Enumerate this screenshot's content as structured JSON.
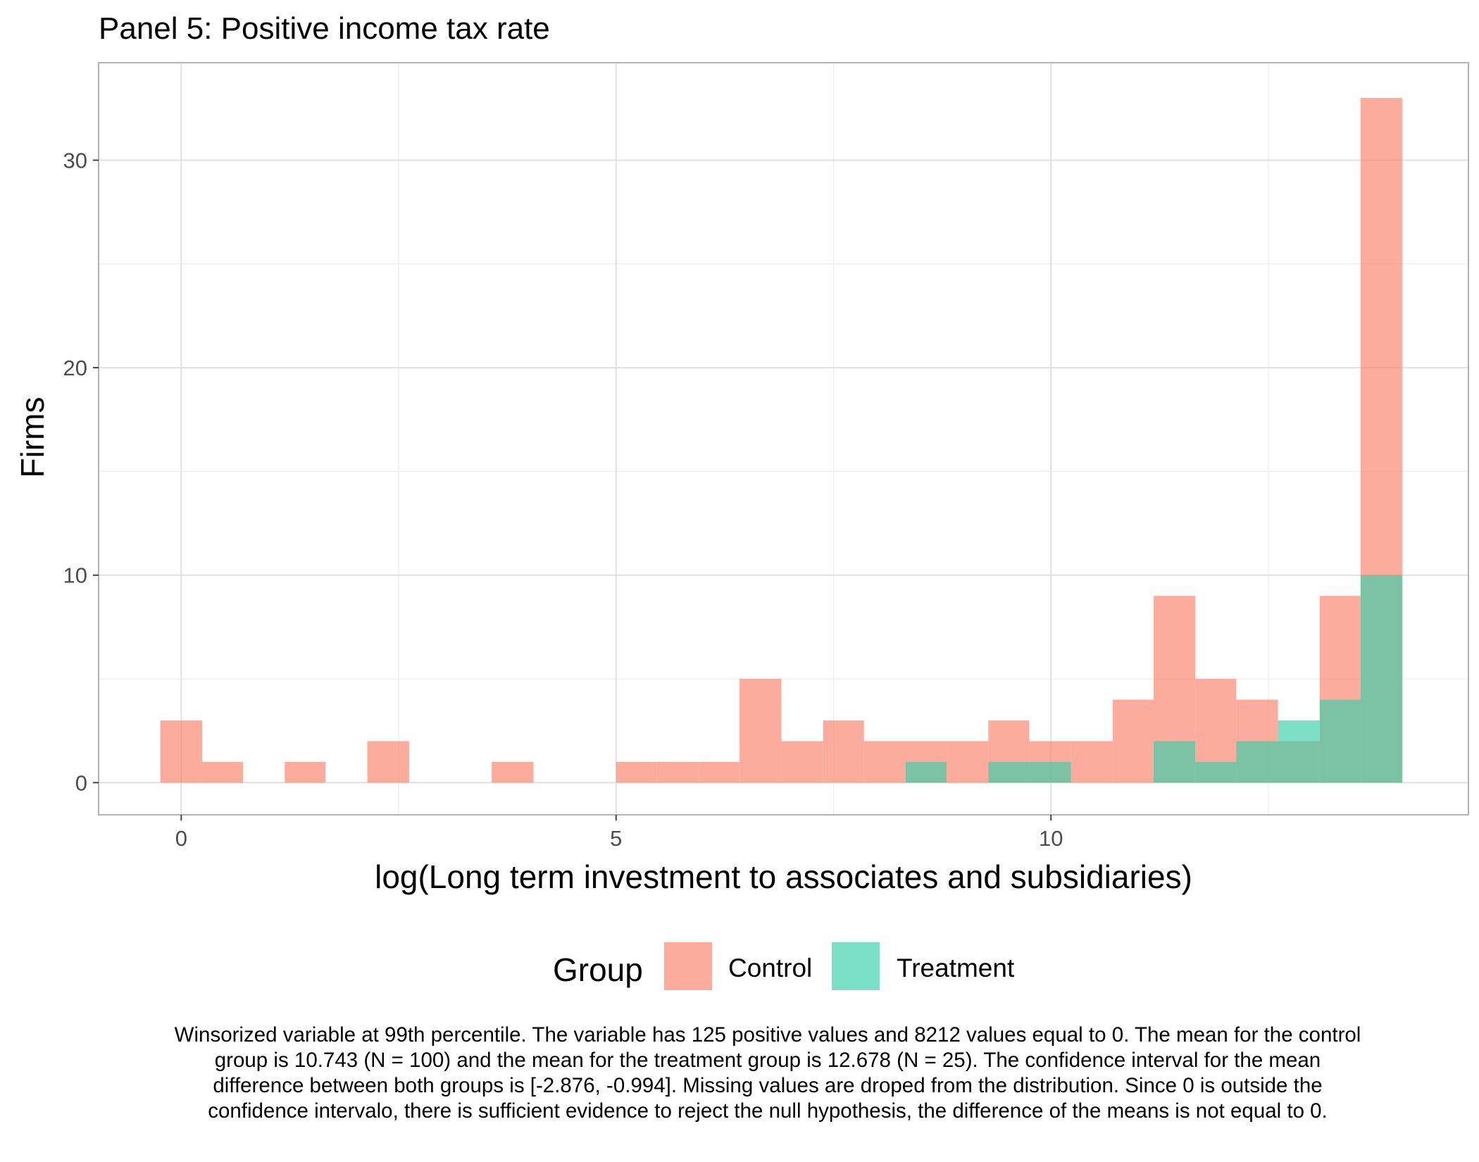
{
  "chart_data": {
    "type": "bar",
    "title": "Panel 5: Positive income tax rate",
    "xlabel": "log(Long term investment to associates and subsidiaries)",
    "ylabel": "Firms",
    "xlim": [
      -0.95,
      14.8
    ],
    "ylim": [
      -1.55,
      34.7
    ],
    "xticks": [
      0,
      5,
      10
    ],
    "yticks": [
      0,
      10,
      20,
      30
    ],
    "grid": true,
    "bin_width": 0.4755,
    "legend_title": "Group",
    "legend_position": "bottom",
    "series": [
      {
        "name": "Control",
        "color": "#FA8069",
        "opacity": 0.65,
        "bins": [
          {
            "start": -0.24,
            "end": 0.24,
            "count": 3
          },
          {
            "start": 0.24,
            "end": 0.71,
            "count": 1
          },
          {
            "start": 1.19,
            "end": 1.66,
            "count": 1
          },
          {
            "start": 2.14,
            "end": 2.62,
            "count": 2
          },
          {
            "start": 3.57,
            "end": 4.05,
            "count": 1
          },
          {
            "start": 5.0,
            "end": 5.47,
            "count": 1
          },
          {
            "start": 5.47,
            "end": 5.95,
            "count": 1
          },
          {
            "start": 5.95,
            "end": 6.42,
            "count": 1
          },
          {
            "start": 6.42,
            "end": 6.9,
            "count": 5
          },
          {
            "start": 6.9,
            "end": 7.38,
            "count": 2
          },
          {
            "start": 7.38,
            "end": 7.85,
            "count": 3
          },
          {
            "start": 7.85,
            "end": 8.33,
            "count": 2
          },
          {
            "start": 8.33,
            "end": 8.8,
            "count": 2
          },
          {
            "start": 8.8,
            "end": 9.28,
            "count": 2
          },
          {
            "start": 9.28,
            "end": 9.75,
            "count": 3
          },
          {
            "start": 9.75,
            "end": 10.23,
            "count": 2
          },
          {
            "start": 10.23,
            "end": 10.71,
            "count": 2
          },
          {
            "start": 10.71,
            "end": 11.18,
            "count": 4
          },
          {
            "start": 11.18,
            "end": 11.66,
            "count": 9
          },
          {
            "start": 11.66,
            "end": 12.13,
            "count": 5
          },
          {
            "start": 12.13,
            "end": 12.61,
            "count": 4
          },
          {
            "start": 12.61,
            "end": 13.09,
            "count": 2
          },
          {
            "start": 13.09,
            "end": 13.56,
            "count": 9
          },
          {
            "start": 13.56,
            "end": 14.04,
            "count": 33
          }
        ]
      },
      {
        "name": "Treatment",
        "color": "#36CFA8",
        "opacity": 0.65,
        "bins": [
          {
            "start": 8.33,
            "end": 8.8,
            "count": 1
          },
          {
            "start": 9.28,
            "end": 9.75,
            "count": 1
          },
          {
            "start": 9.75,
            "end": 10.23,
            "count": 1
          },
          {
            "start": 11.18,
            "end": 11.66,
            "count": 2
          },
          {
            "start": 11.66,
            "end": 12.13,
            "count": 1
          },
          {
            "start": 12.13,
            "end": 12.61,
            "count": 2
          },
          {
            "start": 12.61,
            "end": 13.09,
            "count": 3
          },
          {
            "start": 13.09,
            "end": 13.56,
            "count": 4
          },
          {
            "start": 13.56,
            "end": 14.04,
            "count": 10
          }
        ]
      }
    ]
  },
  "legend": {
    "title": "Group",
    "items": [
      {
        "label": "Control",
        "color": "#FA8069"
      },
      {
        "label": "Treatment",
        "color": "#36CFA8"
      }
    ]
  },
  "note": "Winsorized variable at 99th percentile. The variable has 125 positive values and 8212 values equal to 0. The mean for the control group is 10.743 (N = 100) and the mean for the treatment group is 12.678 (N = 25). The confidence interval for the mean difference between both groups is [-2.876, -0.994]. Missing values are droped from the distribution. Since 0 is outside the confidence intervalo, there is sufficient evidence to reject the null hypothesis, the difference of the means is not equal to 0."
}
